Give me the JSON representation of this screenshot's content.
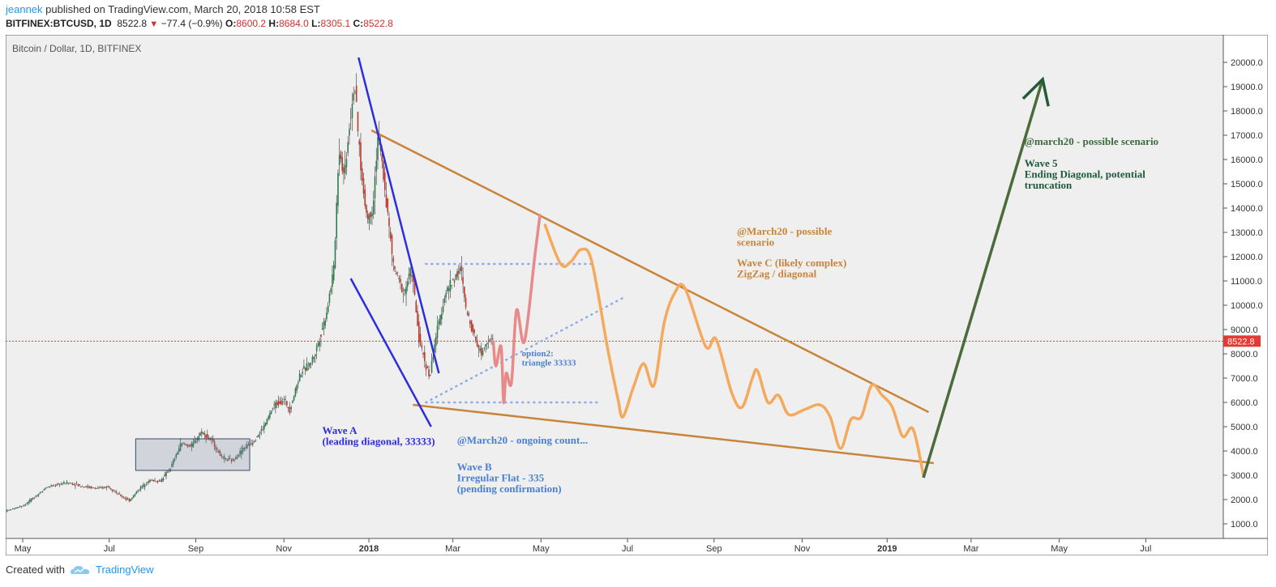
{
  "header": {
    "author": "jeannek",
    "published_text": " published on TradingView.com, March 20, 2018 10:58 EST",
    "symbol": "BITFINEX:BTCUSD, 1D",
    "last": "8522.8",
    "change_icon": "triangle-down-icon",
    "change": "−77.4 (−0.9%)",
    "o_label": "O:",
    "o": "8600.2",
    "h_label": "H:",
    "h": "8684.0",
    "l_label": "L:",
    "l": "8305.1",
    "c_label": "C:",
    "c": "8522.8"
  },
  "footer": {
    "created_with": "Created with",
    "brand": "TradingView",
    "brand_icon": "tradingview-cloud-icon"
  },
  "chart_data": {
    "type": "line",
    "title": "Bitcoin / Dollar, 1D, BITFINEX",
    "ylim": [
      0,
      20700
    ],
    "y_ticks": [
      "20000.0",
      "19000.0",
      "18000.0",
      "17000.0",
      "16000.0",
      "15000.0",
      "14000.0",
      "13000.0",
      "12000.0",
      "11000.0",
      "10000.0",
      "9000.0",
      "8000.0",
      "7000.0",
      "6000.0",
      "5000.0",
      "4000.0",
      "3000.0",
      "2000.0",
      "1000.0"
    ],
    "x_ticks": [
      {
        "label": "May",
        "t": 2017.332,
        "bold": false
      },
      {
        "label": "Jul",
        "t": 2017.499,
        "bold": false
      },
      {
        "label": "Sep",
        "t": 2017.666,
        "bold": false
      },
      {
        "label": "Nov",
        "t": 2017.836,
        "bold": false
      },
      {
        "label": "2018",
        "t": 2018.0,
        "bold": true
      },
      {
        "label": "Mar",
        "t": 2018.162,
        "bold": false
      },
      {
        "label": "May",
        "t": 2018.332,
        "bold": false
      },
      {
        "label": "Jul",
        "t": 2018.499,
        "bold": false
      },
      {
        "label": "Sep",
        "t": 2018.666,
        "bold": false
      },
      {
        "label": "Nov",
        "t": 2018.836,
        "bold": false
      },
      {
        "label": "2019",
        "t": 2019.0,
        "bold": true
      },
      {
        "label": "Mar",
        "t": 2019.162,
        "bold": false
      },
      {
        "label": "May",
        "t": 2019.332,
        "bold": false
      },
      {
        "label": "Jul",
        "t": 2019.499,
        "bold": false
      }
    ],
    "last_price": 8522.8,
    "last_price_label": "8522.8",
    "colors": {
      "up": "#2e7d4f",
      "down": "#c0392b",
      "wave_a": "#2d2de0",
      "triangle": "#c8843a",
      "scenario_c": "#f5a95c",
      "scenario_b": "#e88a8a",
      "dotted": "#8fa8e8",
      "wave5": "#4a6b3a",
      "last_price": "#e53935"
    },
    "price_path": [
      [
        2017.25,
        1200
      ],
      [
        2017.3,
        1500
      ],
      [
        2017.34,
        1800
      ],
      [
        2017.38,
        2500
      ],
      [
        2017.42,
        2700
      ],
      [
        2017.45,
        2550
      ],
      [
        2017.48,
        2450
      ],
      [
        2017.5,
        2550
      ],
      [
        2017.52,
        2200
      ],
      [
        2017.54,
        1950
      ],
      [
        2017.56,
        2450
      ],
      [
        2017.58,
        2800
      ],
      [
        2017.6,
        2750
      ],
      [
        2017.62,
        3300
      ],
      [
        2017.64,
        4300
      ],
      [
        2017.66,
        4200
      ],
      [
        2017.68,
        4800
      ],
      [
        2017.7,
        4400
      ],
      [
        2017.72,
        3700
      ],
      [
        2017.74,
        3600
      ],
      [
        2017.76,
        4100
      ],
      [
        2017.78,
        4400
      ],
      [
        2017.8,
        5000
      ],
      [
        2017.82,
        5900
      ],
      [
        2017.84,
        6100
      ],
      [
        2017.85,
        5700
      ],
      [
        2017.87,
        7200
      ],
      [
        2017.89,
        7600
      ],
      [
        2017.9,
        8100
      ],
      [
        2017.92,
        9600
      ],
      [
        2017.935,
        11500
      ],
      [
        2017.945,
        16500
      ],
      [
        2017.955,
        15300
      ],
      [
        2017.965,
        17400
      ],
      [
        2017.975,
        19200
      ],
      [
        2017.98,
        17500
      ],
      [
        2017.99,
        15000
      ],
      [
        2018.0,
        13500
      ],
      [
        2018.01,
        14000
      ],
      [
        2018.02,
        17000
      ],
      [
        2018.03,
        15500
      ],
      [
        2018.04,
        13500
      ],
      [
        2018.05,
        11600
      ],
      [
        2018.07,
        10500
      ],
      [
        2018.085,
        11500
      ],
      [
        2018.1,
        8500
      ],
      [
        2018.12,
        7000
      ],
      [
        2018.13,
        8500
      ],
      [
        2018.15,
        10500
      ],
      [
        2018.17,
        11200
      ],
      [
        2018.18,
        11500
      ],
      [
        2018.19,
        9800
      ],
      [
        2018.2,
        9200
      ],
      [
        2018.21,
        8500
      ],
      [
        2018.22,
        8000
      ],
      [
        2018.23,
        8600
      ],
      [
        2018.24,
        8522.8
      ]
    ],
    "scenario_b_path": [
      [
        2018.24,
        8500
      ],
      [
        2018.245,
        7500
      ],
      [
        2018.255,
        8300
      ],
      [
        2018.26,
        6000
      ],
      [
        2018.265,
        7200
      ],
      [
        2018.275,
        6800
      ],
      [
        2018.285,
        9800
      ],
      [
        2018.3,
        8500
      ],
      [
        2018.32,
        12000
      ],
      [
        2018.33,
        13700
      ]
    ],
    "scenario_c_path": [
      [
        2018.34,
        13300
      ],
      [
        2018.37,
        11700
      ],
      [
        2018.39,
        11800
      ],
      [
        2018.41,
        12300
      ],
      [
        2018.43,
        11800
      ],
      [
        2018.46,
        8300
      ],
      [
        2018.48,
        6200
      ],
      [
        2018.49,
        5400
      ],
      [
        2018.51,
        6600
      ],
      [
        2018.53,
        7600
      ],
      [
        2018.55,
        6700
      ],
      [
        2018.57,
        9300
      ],
      [
        2018.59,
        10500
      ],
      [
        2018.61,
        10700
      ],
      [
        2018.65,
        8300
      ],
      [
        2018.67,
        8600
      ],
      [
        2018.7,
        6400
      ],
      [
        2018.72,
        5800
      ],
      [
        2018.74,
        7000
      ],
      [
        2018.75,
        7300
      ],
      [
        2018.77,
        6000
      ],
      [
        2018.79,
        6300
      ],
      [
        2018.81,
        5500
      ],
      [
        2018.84,
        5700
      ],
      [
        2018.87,
        5900
      ],
      [
        2018.89,
        5400
      ],
      [
        2018.91,
        4100
      ],
      [
        2018.93,
        5300
      ],
      [
        2018.95,
        5400
      ],
      [
        2018.97,
        6700
      ],
      [
        2018.99,
        6300
      ],
      [
        2019.01,
        5800
      ],
      [
        2019.03,
        4600
      ],
      [
        2019.05,
        4900
      ],
      [
        2019.07,
        3000
      ]
    ],
    "wave5_path": [
      [
        2019.07,
        2900
      ],
      [
        2019.3,
        19300
      ]
    ],
    "triangle_upper": [
      [
        2018.005,
        17200
      ],
      [
        2019.08,
        5600
      ]
    ],
    "triangle_lower": [
      [
        2018.085,
        5900
      ],
      [
        2019.09,
        3500
      ]
    ],
    "wave_a_upper": [
      [
        2017.98,
        20200
      ],
      [
        2018.135,
        7200
      ]
    ],
    "wave_a_lower": [
      [
        2017.965,
        11100
      ],
      [
        2018.12,
        5000
      ]
    ],
    "dotted_upper": [
      [
        2018.11,
        11700
      ],
      [
        2018.43,
        11700
      ]
    ],
    "dotted_lower": [
      [
        2018.11,
        6000
      ],
      [
        2018.44,
        6000
      ]
    ],
    "dotted_diag": [
      [
        2018.11,
        6000
      ],
      [
        2018.49,
        10300
      ]
    ],
    "range_box": {
      "t0": 2017.55,
      "t1": 2017.77,
      "p0": 3200,
      "p1": 4500
    },
    "annotations": [
      {
        "lines": [
          "Wave A",
          "(leading diagonal, 33333)"
        ],
        "t": 2017.91,
        "p": 4700,
        "color": "#2d2de0",
        "size": 13
      },
      {
        "lines": [
          "@March20 - ongoing count..."
        ],
        "t": 2018.17,
        "p": 4300,
        "color": "#4a7fd6",
        "size": 13
      },
      {
        "lines": [
          "Wave B",
          "Irregular Flat - 335",
          "(pending confirmation)"
        ],
        "t": 2018.17,
        "p": 3200,
        "color": "#4a7fd6",
        "size": 13
      },
      {
        "lines": [
          "option2:",
          "triangle 33333"
        ],
        "t": 2018.295,
        "p": 7900,
        "color": "#4a7fd6",
        "size": 11
      },
      {
        "lines": [
          "@March20 - possible",
          "scenario"
        ],
        "t": 2018.71,
        "p": 12900,
        "color": "#c8843a",
        "size": 13
      },
      {
        "lines": [
          "Wave C (likely complex)",
          "ZigZag / diagonal"
        ],
        "t": 2018.71,
        "p": 11600,
        "color": "#c8843a",
        "size": 13
      },
      {
        "lines": [
          "@march20 - possible scenario"
        ],
        "t": 2019.265,
        "p": 16600,
        "color": "#3d6b3d",
        "size": 13
      },
      {
        "lines": [
          "Wave 5",
          "Ending Diagonal, potential",
          "truncation"
        ],
        "t": 2019.265,
        "p": 15700,
        "color": "#1e5a3a",
        "size": 13
      }
    ]
  }
}
